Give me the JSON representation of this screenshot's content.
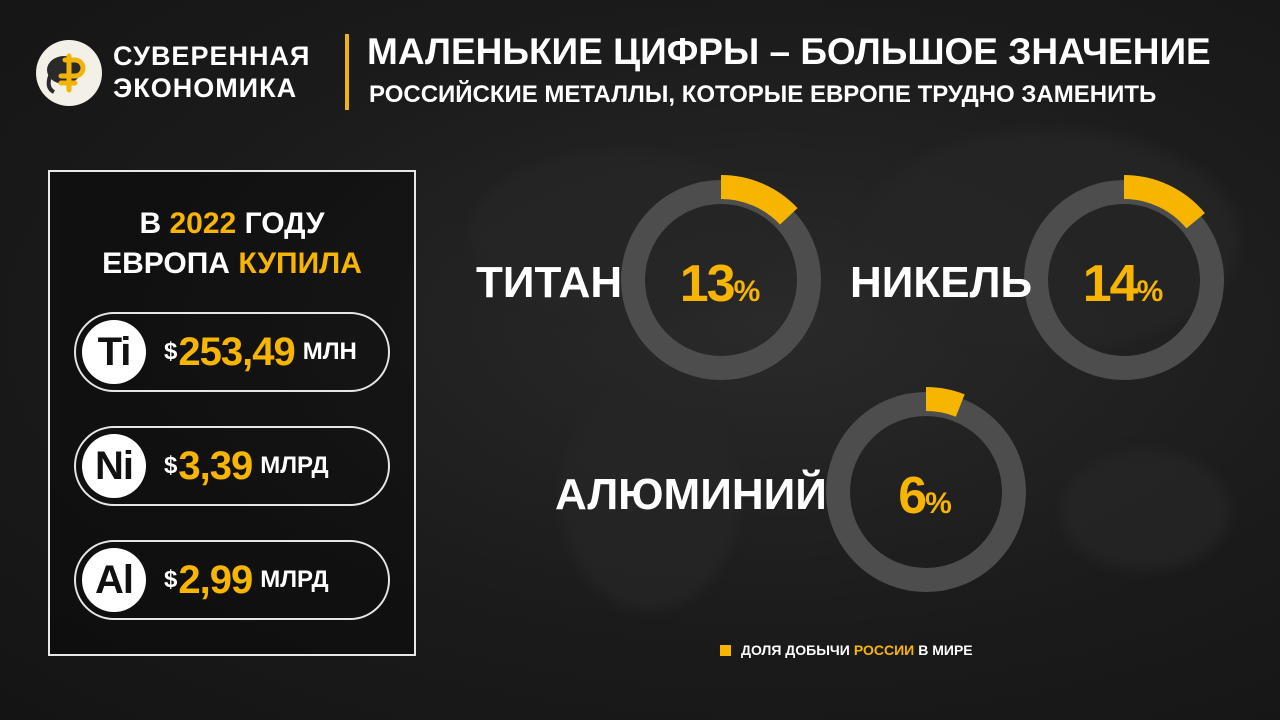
{
  "brand": {
    "line1": "СУВЕРЕННАЯ",
    "line2": "ЭКОНОМИКА"
  },
  "header": {
    "title": "МАЛЕНЬКИЕ ЦИФРЫ – БОЛЬШОЕ ЗНАЧЕНИЕ",
    "subtitle": "РОССИЙСКИЕ МЕТАЛЛЫ, КОТОРЫЕ ЕВРОПЕ ТРУДНО ЗАМЕНИТЬ"
  },
  "panel": {
    "line1_prefix": "В",
    "year": "2022",
    "line1_suffix": "ГОДУ",
    "line2_prefix": "ЕВРОПА",
    "line2_highlight": "КУПИЛА",
    "items": [
      {
        "symbol": "Ti",
        "currency": "$",
        "value": "253,49",
        "unit": "МЛН"
      },
      {
        "symbol": "Ni",
        "currency": "$",
        "value": "3,39",
        "unit": "МЛРД"
      },
      {
        "symbol": "Al",
        "currency": "$",
        "value": "2,99",
        "unit": "МЛРД"
      }
    ]
  },
  "colors": {
    "accent": "#f7b500",
    "ring": "#4d4d4d",
    "background": "#1b1b1b"
  },
  "chart_data": {
    "type": "pie",
    "style": "donut",
    "series": [
      {
        "name": "ТИТАН",
        "value": 13,
        "label": "13",
        "unit": "%"
      },
      {
        "name": "НИКЕЛЬ",
        "value": 14,
        "label": "14",
        "unit": "%"
      },
      {
        "name": "АЛЮМИНИЙ",
        "value": 6,
        "label": "6",
        "unit": "%"
      }
    ],
    "legend": {
      "prefix": "ДОЛЯ ДОБЫЧИ",
      "highlight": "РОССИИ",
      "suffix": "В МИРЕ"
    }
  }
}
